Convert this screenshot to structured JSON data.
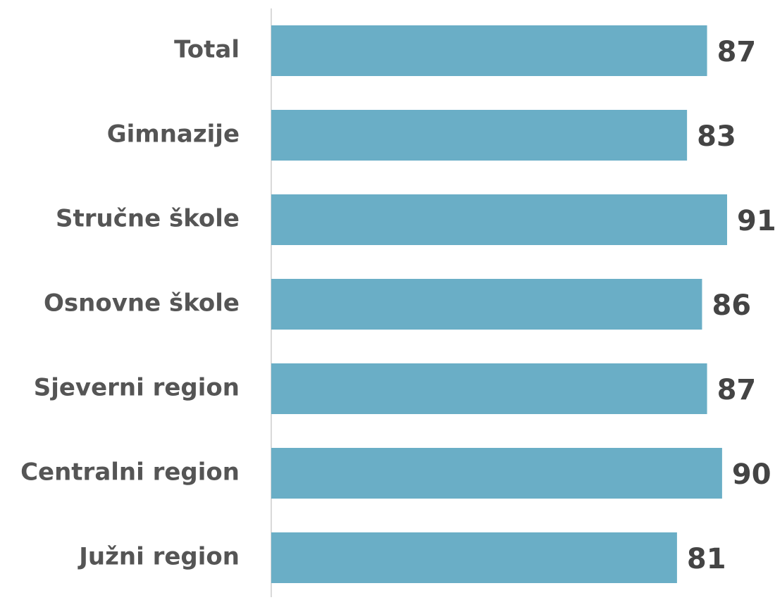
{
  "chart_data": {
    "type": "barh",
    "categories": [
      "Total",
      "Gimnazije",
      "Stručne škole",
      "Osnovne škole",
      "Sjeverni region",
      "Centralni region",
      "Južni region"
    ],
    "values": [
      87,
      83,
      91,
      86,
      87,
      90,
      81
    ],
    "color": "#6aaec6",
    "xlim": [
      0,
      100
    ]
  }
}
